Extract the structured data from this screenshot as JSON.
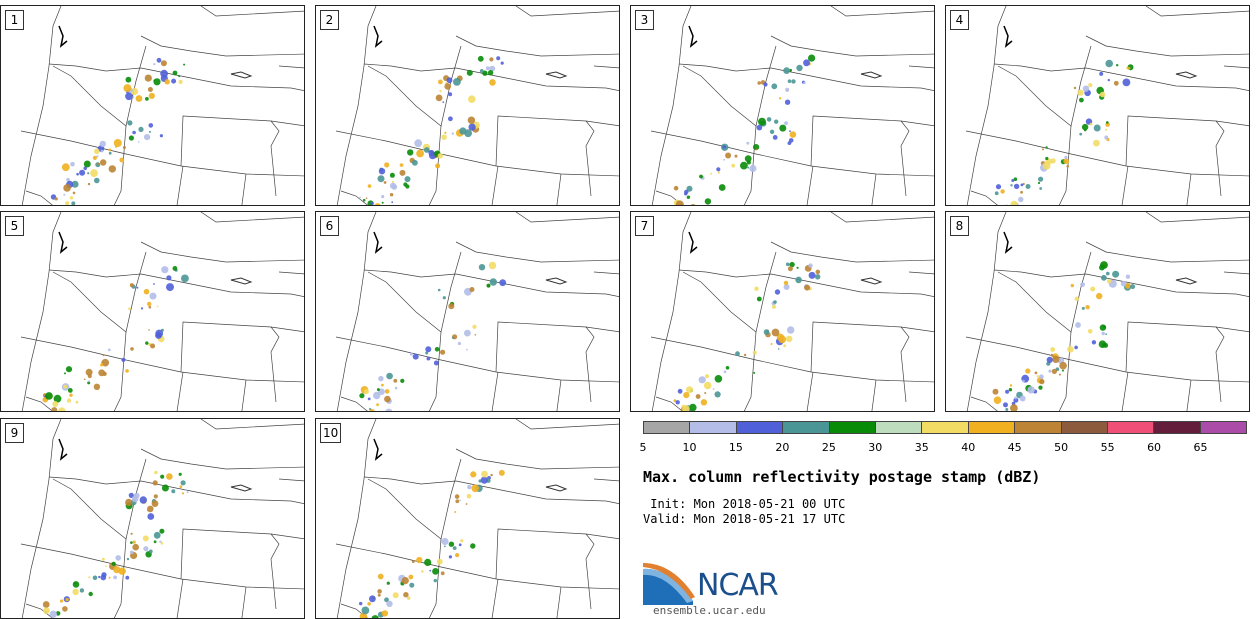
{
  "panels": [
    {
      "label": "1"
    },
    {
      "label": "2"
    },
    {
      "label": "3"
    },
    {
      "label": "4"
    },
    {
      "label": "5"
    },
    {
      "label": "6"
    },
    {
      "label": "7"
    },
    {
      "label": "8"
    },
    {
      "label": "9"
    },
    {
      "label": "10"
    }
  ],
  "legend": {
    "colors": [
      "#a6a6a6",
      "#b3bde8",
      "#5060d8",
      "#4a9696",
      "#088c08",
      "#bedcbe",
      "#f2dc64",
      "#f0b020",
      "#bc8434",
      "#8c5a3c",
      "#f05078",
      "#641e3c",
      "#aa4ca8"
    ],
    "ticks": [
      "5",
      "10",
      "15",
      "20",
      "25",
      "30",
      "35",
      "40",
      "45",
      "50",
      "55",
      "60",
      "65"
    ]
  },
  "title": "Max. column reflectivity postage stamp (dBZ)",
  "init": " Init: Mon 2018-05-21 00 UTC",
  "valid": "Valid: Mon 2018-05-21 17 UTC",
  "logo": {
    "text": "NCAR",
    "url": "ensemble.ucar.edu"
  }
}
